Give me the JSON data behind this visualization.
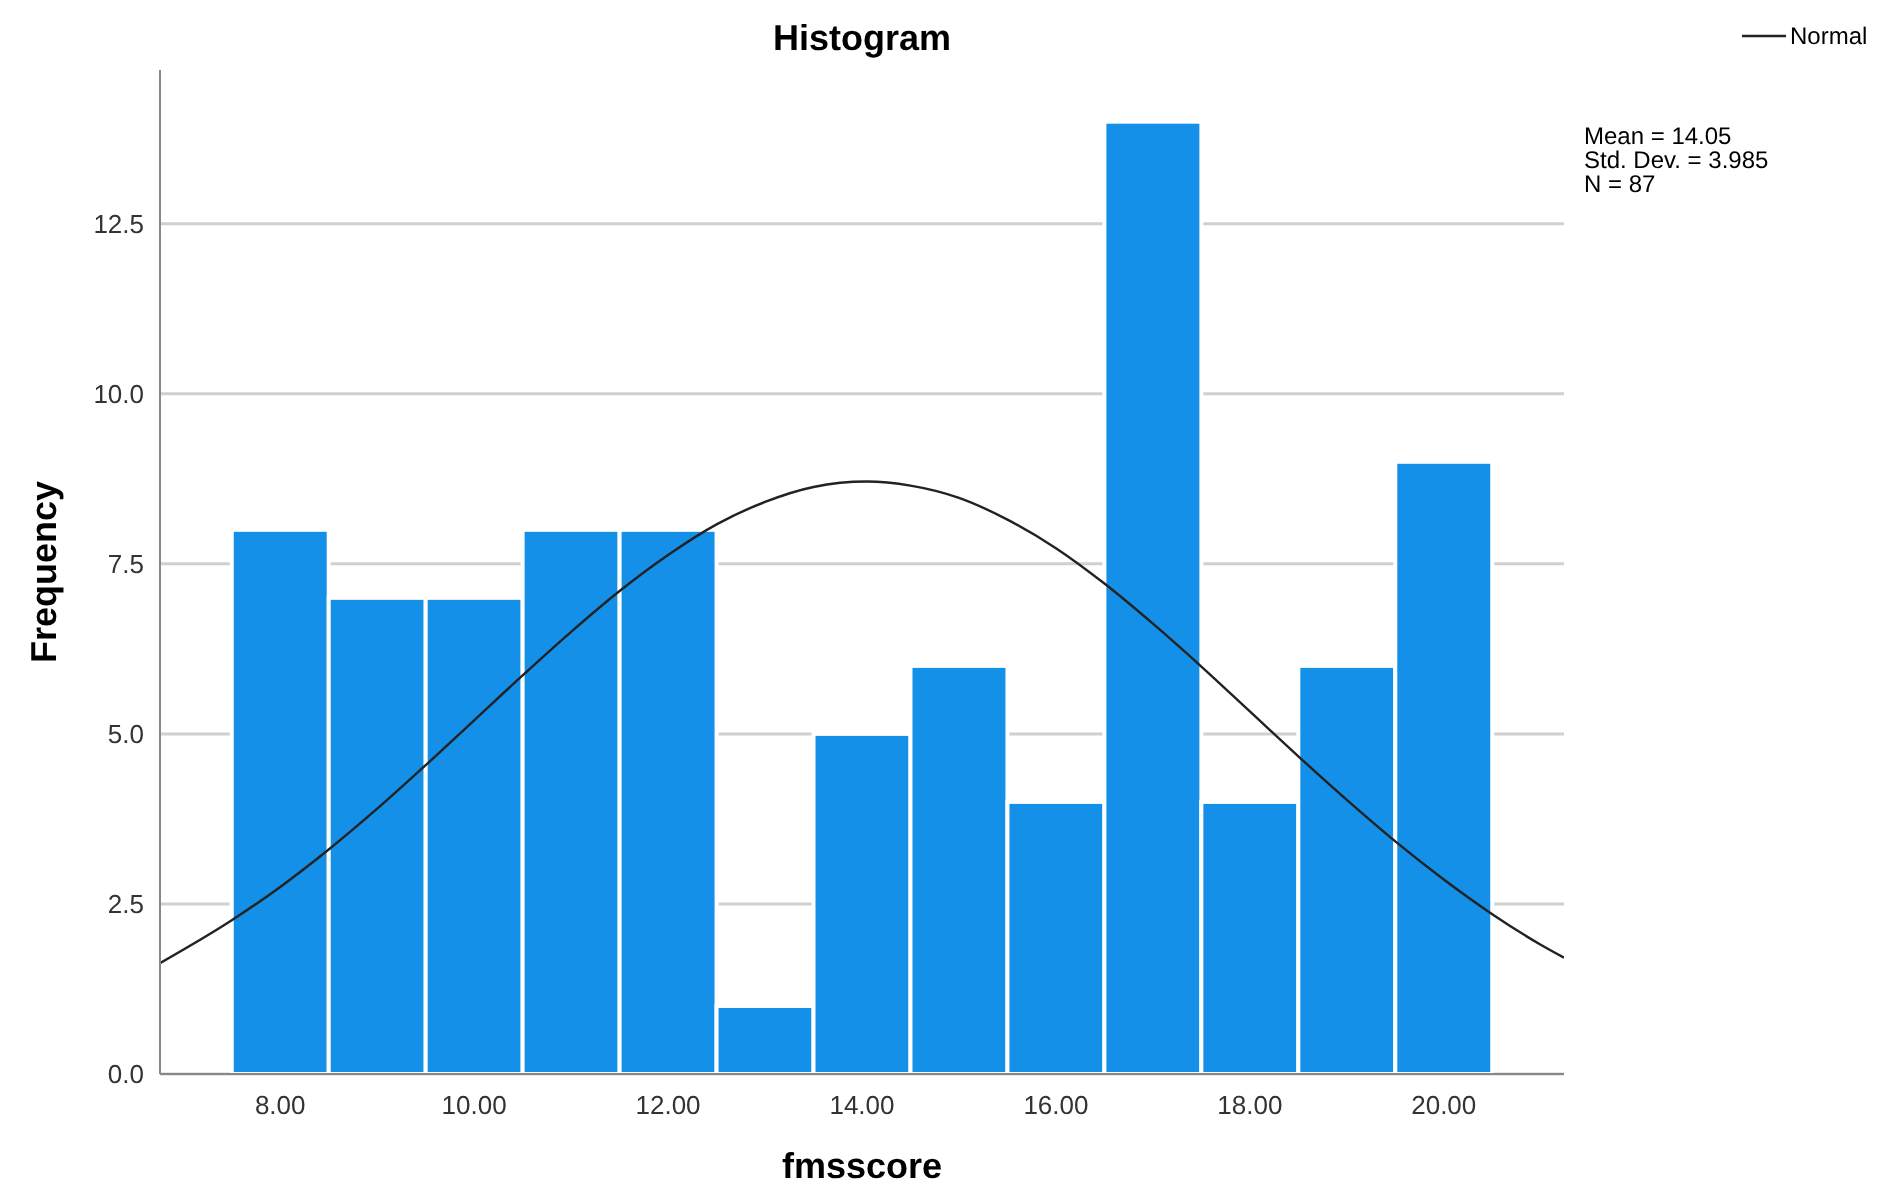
{
  "chart_data": {
    "type": "histogram",
    "title": "Histogram",
    "xlabel": "fmsscore",
    "ylabel": "Frequency",
    "bins": [
      7.5,
      8.5,
      9.5,
      10.5,
      11.5,
      12.5,
      13.5,
      14.5,
      15.5,
      16.5,
      17.5,
      18.5,
      19.5,
      20.5
    ],
    "values": [
      8,
      7,
      7,
      8,
      8,
      1,
      5,
      6,
      4,
      14,
      4,
      6,
      9
    ],
    "color": "#1490e8",
    "series": [
      {
        "type": "line",
        "name": "Normal",
        "color": "#222222",
        "x": [
          6.76,
          7.5,
          8,
          8.5,
          9,
          9.5,
          10,
          10.5,
          11,
          11.5,
          12,
          12.5,
          13,
          13.5,
          14.05,
          14.5,
          15,
          15.5,
          16,
          16.5,
          17,
          17.5,
          18,
          18.5,
          19,
          19.5,
          20,
          20.5,
          21,
          21.24
        ],
        "values": [
          1.63,
          2.26,
          2.75,
          3.3,
          3.9,
          4.54,
          5.2,
          5.86,
          6.5,
          7.1,
          7.63,
          8.08,
          8.41,
          8.63,
          8.71,
          8.65,
          8.47,
          8.15,
          7.73,
          7.21,
          6.62,
          5.99,
          5.33,
          4.67,
          4.03,
          3.42,
          2.86,
          2.35,
          1.9,
          1.71
        ]
      }
    ],
    "xlim": [
      6.76,
      21.24
    ],
    "ylim": [
      0,
      14.76
    ],
    "xticks": [
      {
        "value": 8,
        "label": "8.00"
      },
      {
        "value": 10,
        "label": "10.00"
      },
      {
        "value": 12,
        "label": "12.00"
      },
      {
        "value": 14,
        "label": "14.00"
      },
      {
        "value": 16,
        "label": "16.00"
      },
      {
        "value": 18,
        "label": "18.00"
      },
      {
        "value": 20,
        "label": "20.00"
      }
    ],
    "yticks": [
      {
        "value": 0,
        "label": "0.0"
      },
      {
        "value": 2.5,
        "label": "2.5"
      },
      {
        "value": 5,
        "label": "5.0"
      },
      {
        "value": 7.5,
        "label": "7.5"
      },
      {
        "value": 10,
        "label": "10.0"
      },
      {
        "value": 12.5,
        "label": "12.5"
      }
    ],
    "grid": "y",
    "legend": "top right",
    "marker": "none",
    "line_style": "solid",
    "annotations": [
      "Mean = 14.05",
      "Std. Dev. = 3.985",
      "N = 87"
    ]
  }
}
